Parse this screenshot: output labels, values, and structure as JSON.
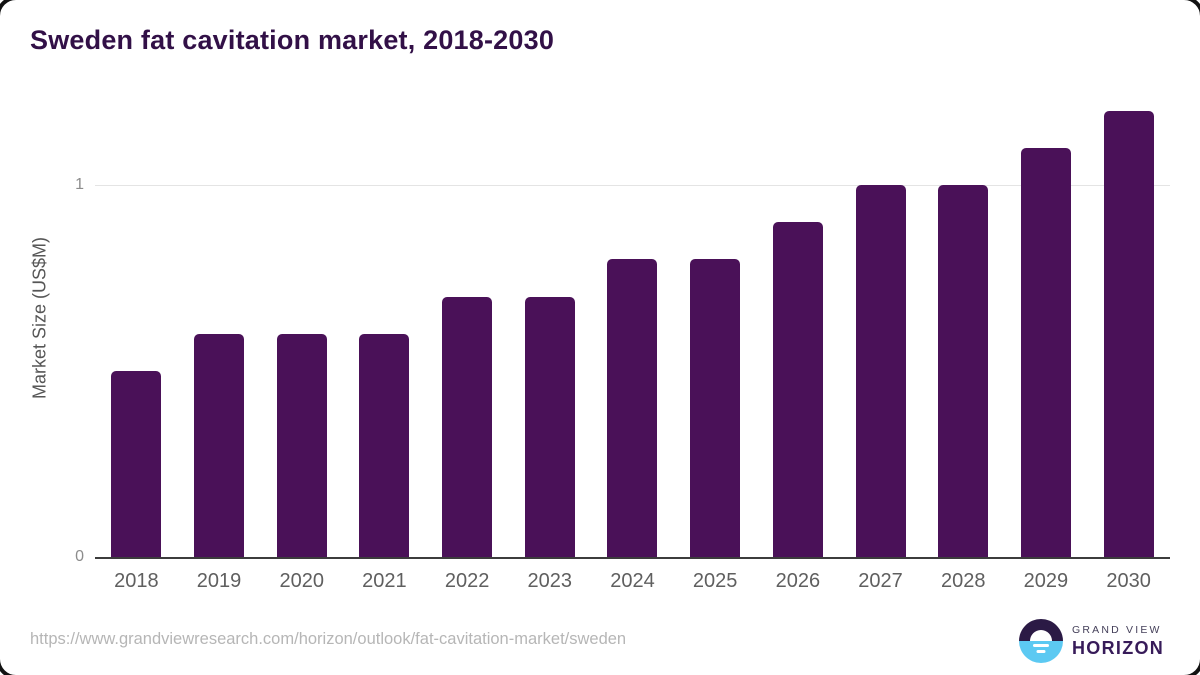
{
  "chart_data": {
    "type": "bar",
    "title": "Sweden fat cavitation market, 2018-2030",
    "categories": [
      "2018",
      "2019",
      "2020",
      "2021",
      "2022",
      "2023",
      "2024",
      "2025",
      "2026",
      "2027",
      "2028",
      "2029",
      "2030"
    ],
    "values": [
      0.5,
      0.6,
      0.6,
      0.6,
      0.7,
      0.7,
      0.8,
      0.8,
      0.9,
      1.0,
      1.0,
      1.1,
      1.2
    ],
    "xlabel": "",
    "ylabel": "Market Size (US$M)",
    "ylim": [
      0,
      1.2
    ],
    "yticks": [
      "0",
      "1"
    ],
    "grid": "single horizontal gridline at y=1",
    "legend": "none",
    "bar_color": "#4a1158"
  },
  "colors": {
    "title_text": "#321047",
    "bar": "#4a1158",
    "axis_line": "#3c3c3c",
    "gridline": "#e4e4e4",
    "tick_text": "#8c8c8c",
    "xlabel_text": "#5f5f5f",
    "url_text": "#b6b6b6",
    "logo_dark": "#2b1a45",
    "logo_blue": "#5cc9f2"
  },
  "footer": {
    "source_url": "https://www.grandviewresearch.com/horizon/outlook/fat-cavitation-market/sweden",
    "logo": {
      "line1": "GRAND VIEW",
      "line2": "HORIZON"
    }
  }
}
